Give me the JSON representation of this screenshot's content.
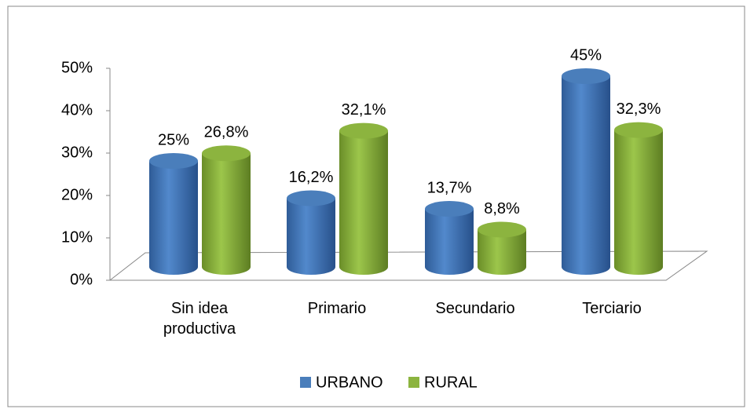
{
  "chart_data": {
    "type": "bar3d",
    "categories": [
      "Sin idea productiva",
      "Primario",
      "Secundario",
      "Terciario"
    ],
    "series": [
      {
        "name": "URBANO",
        "color": "#4a7ebb",
        "values": [
          25,
          16.2,
          13.7,
          45
        ],
        "value_labels": [
          "25%",
          "16,2%",
          "13,7%",
          "45%"
        ]
      },
      {
        "name": "RURAL",
        "color": "#8cb43f",
        "values": [
          26.8,
          32.1,
          8.8,
          32.3
        ],
        "value_labels": [
          "26,8%",
          "32,1%",
          "8,8%",
          "32,3%"
        ]
      }
    ],
    "ylim": [
      0,
      50
    ],
    "yticks": [
      {
        "value": 0,
        "label": "0%"
      },
      {
        "value": 10,
        "label": "10%"
      },
      {
        "value": 20,
        "label": "20%"
      },
      {
        "value": 30,
        "label": "30%"
      },
      {
        "value": 40,
        "label": "40%"
      },
      {
        "value": 50,
        "label": "50%"
      }
    ],
    "legend": "bottom"
  }
}
